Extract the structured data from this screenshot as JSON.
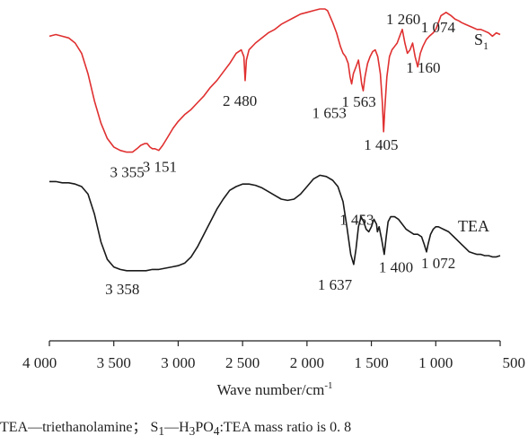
{
  "chart_data": {
    "type": "line",
    "xlabel": "Wave number/cm",
    "xlabel_sup": "-1",
    "xlim": [
      4000,
      500
    ],
    "x_reversed": true,
    "y_axis_shown": false,
    "grid": false,
    "xticks": [
      {
        "value": 4000,
        "label": "4 000"
      },
      {
        "value": 3500,
        "label": "3 500"
      },
      {
        "value": 3000,
        "label": "3 000"
      },
      {
        "value": 2500,
        "label": "2 500"
      },
      {
        "value": 2000,
        "label": "2 000"
      },
      {
        "value": 1500,
        "label": "1 500"
      },
      {
        "value": 1000,
        "label": "1 000"
      },
      {
        "value": 500,
        "label": "500"
      }
    ],
    "series": [
      {
        "name": "S",
        "name_sub": "1",
        "color": "#e03030",
        "x": [
          4000,
          3950,
          3900,
          3850,
          3800,
          3750,
          3700,
          3650,
          3600,
          3550,
          3500,
          3450,
          3400,
          3355,
          3320,
          3290,
          3260,
          3240,
          3220,
          3200,
          3180,
          3151,
          3120,
          3080,
          3040,
          3000,
          2950,
          2900,
          2850,
          2800,
          2750,
          2700,
          2650,
          2600,
          2550,
          2510,
          2490,
          2480,
          2470,
          2450,
          2400,
          2350,
          2300,
          2250,
          2200,
          2150,
          2100,
          2050,
          2000,
          1950,
          1900,
          1860,
          1840,
          1800,
          1770,
          1740,
          1720,
          1700,
          1680,
          1665,
          1653,
          1640,
          1620,
          1600,
          1585,
          1575,
          1563,
          1550,
          1530,
          1510,
          1490,
          1470,
          1450,
          1430,
          1415,
          1405,
          1395,
          1380,
          1360,
          1340,
          1320,
          1300,
          1280,
          1260,
          1240,
          1220,
          1200,
          1180,
          1160,
          1140,
          1120,
          1100,
          1074,
          1050,
          1020,
          1000,
          980,
          960,
          940,
          920,
          900,
          880,
          850,
          820,
          800,
          770,
          740,
          710,
          680,
          650,
          620,
          590,
          560,
          530,
          500
        ],
        "y": [
          0.84,
          0.85,
          0.84,
          0.83,
          0.8,
          0.74,
          0.62,
          0.46,
          0.33,
          0.24,
          0.19,
          0.17,
          0.16,
          0.16,
          0.18,
          0.2,
          0.21,
          0.21,
          0.19,
          0.18,
          0.18,
          0.17,
          0.2,
          0.25,
          0.3,
          0.34,
          0.38,
          0.41,
          0.45,
          0.49,
          0.54,
          0.58,
          0.63,
          0.68,
          0.74,
          0.76,
          0.72,
          0.58,
          0.7,
          0.76,
          0.8,
          0.83,
          0.86,
          0.88,
          0.91,
          0.93,
          0.95,
          0.97,
          0.98,
          0.99,
          1.0,
          1.0,
          0.99,
          0.92,
          0.86,
          0.78,
          0.74,
          0.72,
          0.68,
          0.6,
          0.56,
          0.62,
          0.66,
          0.7,
          0.62,
          0.56,
          0.52,
          0.6,
          0.68,
          0.72,
          0.75,
          0.76,
          0.72,
          0.62,
          0.45,
          0.28,
          0.42,
          0.6,
          0.72,
          0.76,
          0.78,
          0.8,
          0.84,
          0.88,
          0.8,
          0.74,
          0.76,
          0.8,
          0.72,
          0.66,
          0.74,
          0.78,
          0.82,
          0.84,
          0.86,
          0.88,
          0.92,
          0.96,
          0.97,
          0.98,
          0.97,
          0.96,
          0.94,
          0.93,
          0.92,
          0.91,
          0.9,
          0.89,
          0.88,
          0.88,
          0.87,
          0.86,
          0.84,
          0.86,
          0.85
        ]
      },
      {
        "name": "TEA",
        "color": "#1a1a1a",
        "x": [
          4000,
          3950,
          3900,
          3850,
          3800,
          3750,
          3700,
          3650,
          3600,
          3550,
          3500,
          3450,
          3400,
          3358,
          3300,
          3250,
          3200,
          3150,
          3100,
          3050,
          3000,
          2950,
          2900,
          2850,
          2800,
          2750,
          2700,
          2650,
          2600,
          2550,
          2500,
          2450,
          2400,
          2350,
          2300,
          2250,
          2200,
          2150,
          2100,
          2050,
          2000,
          1950,
          1900,
          1850,
          1800,
          1760,
          1720,
          1690,
          1660,
          1637,
          1620,
          1600,
          1580,
          1560,
          1540,
          1520,
          1500,
          1480,
          1460,
          1453,
          1440,
          1420,
          1400,
          1385,
          1370,
          1350,
          1320,
          1290,
          1260,
          1230,
          1200,
          1170,
          1140,
          1110,
          1090,
          1072,
          1060,
          1040,
          1020,
          1000,
          980,
          960,
          940,
          920,
          900,
          880,
          860,
          830,
          800,
          770,
          740,
          710,
          680,
          650,
          620,
          590,
          560,
          530,
          500
        ],
        "y": [
          0.84,
          0.84,
          0.83,
          0.83,
          0.82,
          0.8,
          0.74,
          0.58,
          0.36,
          0.22,
          0.16,
          0.14,
          0.13,
          0.13,
          0.13,
          0.13,
          0.14,
          0.14,
          0.15,
          0.16,
          0.17,
          0.19,
          0.24,
          0.32,
          0.42,
          0.52,
          0.62,
          0.7,
          0.77,
          0.8,
          0.82,
          0.82,
          0.81,
          0.79,
          0.76,
          0.73,
          0.7,
          0.69,
          0.7,
          0.74,
          0.8,
          0.86,
          0.89,
          0.88,
          0.85,
          0.8,
          0.68,
          0.48,
          0.26,
          0.18,
          0.3,
          0.48,
          0.56,
          0.52,
          0.46,
          0.44,
          0.48,
          0.54,
          0.5,
          0.44,
          0.48,
          0.38,
          0.26,
          0.4,
          0.52,
          0.56,
          0.56,
          0.54,
          0.5,
          0.46,
          0.44,
          0.42,
          0.42,
          0.4,
          0.34,
          0.28,
          0.34,
          0.42,
          0.46,
          0.48,
          0.48,
          0.47,
          0.46,
          0.45,
          0.44,
          0.42,
          0.4,
          0.37,
          0.34,
          0.31,
          0.28,
          0.27,
          0.26,
          0.26,
          0.25,
          0.25,
          0.24,
          0.24,
          0.25
        ]
      }
    ],
    "annotations": [
      {
        "series": 0,
        "text": "2 480",
        "x": 2480
      },
      {
        "series": 0,
        "text": "3 355",
        "x": 3355
      },
      {
        "series": 0,
        "text": "3 151",
        "x": 3151
      },
      {
        "series": 0,
        "text": "1 653",
        "x": 1653
      },
      {
        "series": 0,
        "text": "1 563",
        "x": 1563
      },
      {
        "series": 0,
        "text": "1 260",
        "x": 1260
      },
      {
        "series": 0,
        "text": "1 160",
        "x": 1160
      },
      {
        "series": 0,
        "text": "1 074",
        "x": 1074
      },
      {
        "series": 0,
        "text": "1 405",
        "x": 1405
      },
      {
        "series": 1,
        "text": "3 358",
        "x": 3358
      },
      {
        "series": 1,
        "text": "1 453",
        "x": 1453
      },
      {
        "series": 1,
        "text": "1 637",
        "x": 1637
      },
      {
        "series": 1,
        "text": "1 400",
        "x": 1400
      },
      {
        "series": 1,
        "text": "1 072",
        "x": 1072
      }
    ]
  },
  "caption": {
    "part1": "TEA—triethanolamine； S",
    "part1_sub": "1",
    "part2": "—H",
    "part2_sub": "3",
    "part3": "PO",
    "part3_sub": "4",
    "part4": ":TEA mass ratio is 0. 8"
  }
}
